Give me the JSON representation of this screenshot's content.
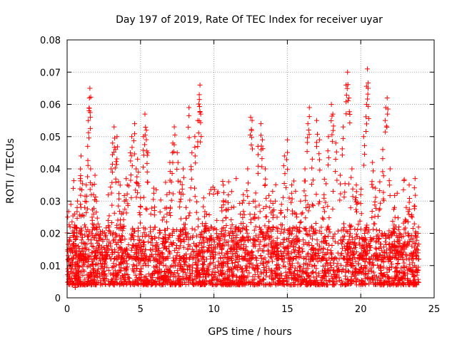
{
  "chart_data": {
    "type": "scatter",
    "title": "Day 197 of 2019, Rate Of TEC Index for receiver uyar",
    "xlabel": "GPS time / hours",
    "ylabel": "ROTI / TECUs",
    "xlim": [
      0,
      25
    ],
    "ylim": [
      0,
      0.08
    ],
    "x_ticks": [
      0,
      5,
      10,
      15,
      20,
      25
    ],
    "x_tick_labels": [
      "0",
      "5",
      "10",
      "15",
      "20",
      "25"
    ],
    "y_ticks": [
      0,
      0.01,
      0.02,
      0.03,
      0.04,
      0.05,
      0.06,
      0.07,
      0.08
    ],
    "y_tick_labels": [
      "0",
      "0.01",
      "0.02",
      "0.03",
      "0.04",
      "0.05",
      "0.06",
      "0.07",
      "0.08"
    ],
    "grid": true,
    "marker": "+",
    "color": "#ff0000",
    "series": [
      {
        "points": [
          [
            0.05,
            0.009
          ],
          [
            0.1,
            0.012
          ],
          [
            0.15,
            0.018
          ],
          [
            0.2,
            0.022
          ],
          [
            0.25,
            0.008
          ],
          [
            0.3,
            0.015
          ],
          [
            0.35,
            0.011
          ],
          [
            0.4,
            0.02
          ],
          [
            0.5,
            0.026
          ],
          [
            0.55,
            0.014
          ],
          [
            0.6,
            0.009
          ],
          [
            0.7,
            0.03
          ],
          [
            0.75,
            0.016
          ],
          [
            0.8,
            0.012
          ],
          [
            0.9,
            0.037
          ],
          [
            0.95,
            0.044
          ],
          [
            1.0,
            0.021
          ],
          [
            1.1,
            0.017
          ],
          [
            1.2,
            0.028
          ],
          [
            1.3,
            0.035
          ],
          [
            1.4,
            0.047
          ],
          [
            1.5,
            0.058
          ],
          [
            1.52,
            0.062
          ],
          [
            1.55,
            0.065
          ],
          [
            1.6,
            0.04
          ],
          [
            1.7,
            0.025
          ],
          [
            1.8,
            0.032
          ],
          [
            1.9,
            0.038
          ],
          [
            2.0,
            0.03
          ],
          [
            2.2,
            0.022
          ],
          [
            2.4,
            0.014
          ],
          [
            2.6,
            0.019
          ],
          [
            2.8,
            0.024
          ],
          [
            3.0,
            0.04
          ],
          [
            3.1,
            0.048
          ],
          [
            3.2,
            0.053
          ],
          [
            3.3,
            0.046
          ],
          [
            3.4,
            0.05
          ],
          [
            3.5,
            0.036
          ],
          [
            3.7,
            0.026
          ],
          [
            3.9,
            0.03
          ],
          [
            4.1,
            0.035
          ],
          [
            4.3,
            0.045
          ],
          [
            4.4,
            0.05
          ],
          [
            4.6,
            0.054
          ],
          [
            4.7,
            0.04
          ],
          [
            4.8,
            0.043
          ],
          [
            5.0,
            0.031
          ],
          [
            5.2,
            0.05
          ],
          [
            5.3,
            0.057
          ],
          [
            5.4,
            0.052
          ],
          [
            5.5,
            0.045
          ],
          [
            5.7,
            0.026
          ],
          [
            5.9,
            0.034
          ],
          [
            6.1,
            0.016
          ],
          [
            6.3,
            0.012
          ],
          [
            6.6,
            0.025
          ],
          [
            6.8,
            0.032
          ],
          [
            7.0,
            0.042
          ],
          [
            7.2,
            0.048
          ],
          [
            7.3,
            0.053
          ],
          [
            7.5,
            0.045
          ],
          [
            7.7,
            0.036
          ],
          [
            7.9,
            0.04
          ],
          [
            8.1,
            0.028
          ],
          [
            8.3,
            0.059
          ],
          [
            8.5,
            0.045
          ],
          [
            8.7,
            0.05
          ],
          [
            8.9,
            0.055
          ],
          [
            9.0,
            0.063
          ],
          [
            9.05,
            0.066
          ],
          [
            9.1,
            0.057
          ],
          [
            9.3,
            0.031
          ],
          [
            9.5,
            0.026
          ],
          [
            9.8,
            0.022
          ],
          [
            10.0,
            0.018
          ],
          [
            10.2,
            0.024
          ],
          [
            10.5,
            0.02
          ],
          [
            10.8,
            0.03
          ],
          [
            11.0,
            0.036
          ],
          [
            11.2,
            0.028
          ],
          [
            11.5,
            0.022
          ],
          [
            11.8,
            0.026
          ],
          [
            12.0,
            0.032
          ],
          [
            12.3,
            0.04
          ],
          [
            12.5,
            0.056
          ],
          [
            12.6,
            0.055
          ],
          [
            12.8,
            0.03
          ],
          [
            13.0,
            0.047
          ],
          [
            13.2,
            0.054
          ],
          [
            13.3,
            0.049
          ],
          [
            13.5,
            0.04
          ],
          [
            13.8,
            0.028
          ],
          [
            14.0,
            0.033
          ],
          [
            14.3,
            0.025
          ],
          [
            14.6,
            0.029
          ],
          [
            14.8,
            0.044
          ],
          [
            15.0,
            0.049
          ],
          [
            15.3,
            0.035
          ],
          [
            15.6,
            0.026
          ],
          [
            15.9,
            0.03
          ],
          [
            16.2,
            0.04
          ],
          [
            16.4,
            0.054
          ],
          [
            16.5,
            0.059
          ],
          [
            16.7,
            0.043
          ],
          [
            17.0,
            0.055
          ],
          [
            17.2,
            0.049
          ],
          [
            17.5,
            0.032
          ],
          [
            17.8,
            0.05
          ],
          [
            18.0,
            0.06
          ],
          [
            18.1,
            0.057
          ],
          [
            18.3,
            0.048
          ],
          [
            18.6,
            0.038
          ],
          [
            18.8,
            0.053
          ],
          [
            19.0,
            0.066
          ],
          [
            19.1,
            0.07
          ],
          [
            19.2,
            0.062
          ],
          [
            19.4,
            0.04
          ],
          [
            19.7,
            0.035
          ],
          [
            20.0,
            0.032
          ],
          [
            20.2,
            0.05
          ],
          [
            20.4,
            0.06
          ],
          [
            20.45,
            0.071
          ],
          [
            20.5,
            0.065
          ],
          [
            20.8,
            0.042
          ],
          [
            21.0,
            0.034
          ],
          [
            21.3,
            0.036
          ],
          [
            21.5,
            0.046
          ],
          [
            21.7,
            0.059
          ],
          [
            21.8,
            0.062
          ],
          [
            22.0,
            0.04
          ],
          [
            22.3,
            0.028
          ],
          [
            22.6,
            0.022
          ],
          [
            22.9,
            0.016
          ],
          [
            23.1,
            0.028
          ],
          [
            23.3,
            0.035
          ],
          [
            23.5,
            0.025
          ],
          [
            23.7,
            0.037
          ],
          [
            23.9,
            0.02
          ]
        ],
        "baseline_band": [
          0.004,
          0.022
        ]
      }
    ]
  }
}
